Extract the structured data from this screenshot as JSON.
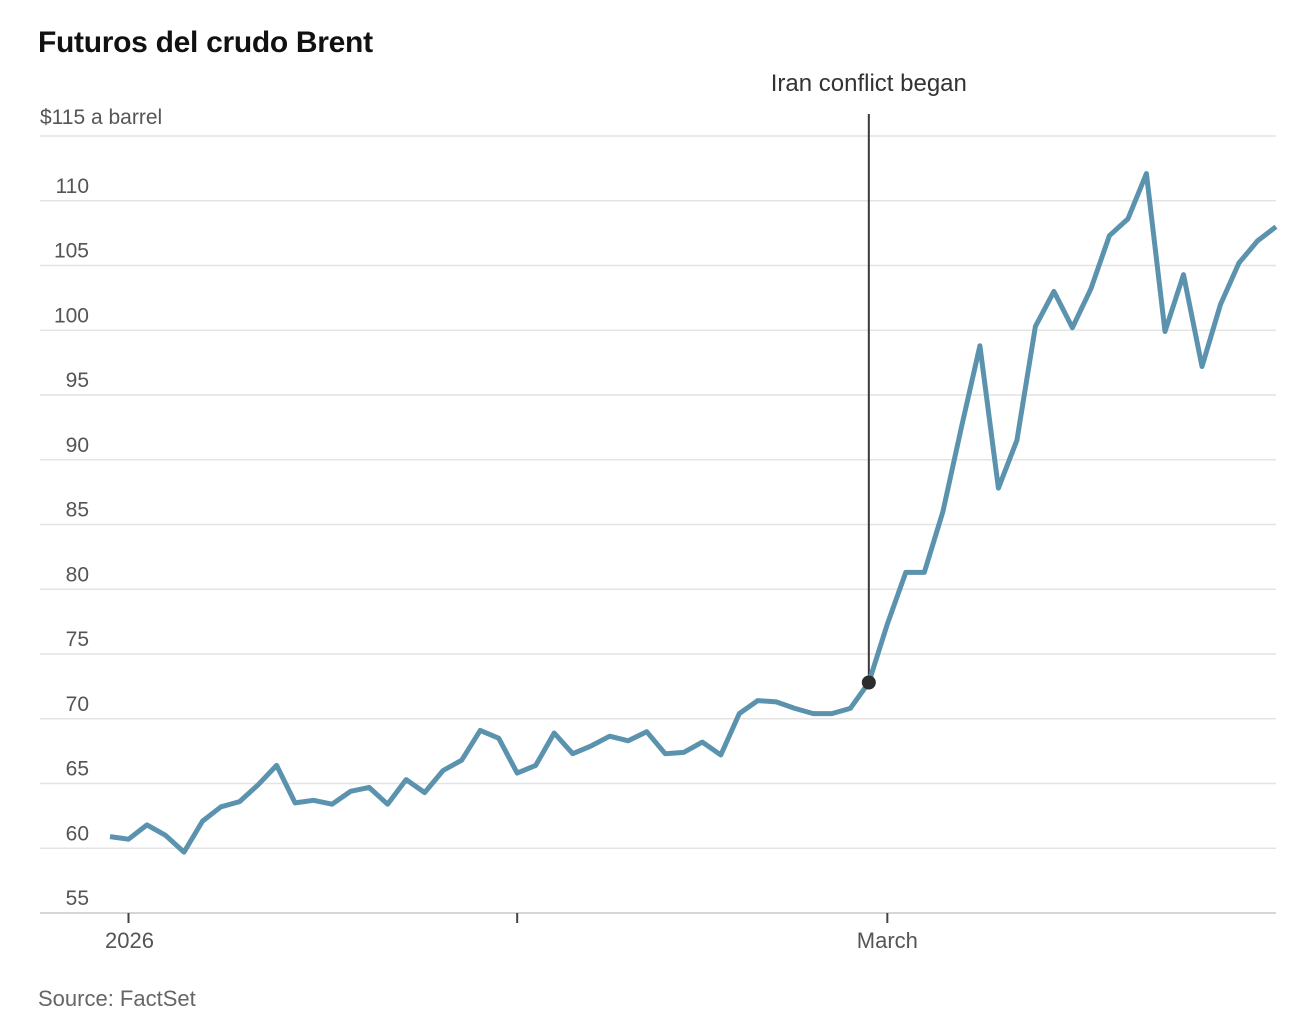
{
  "title": "Futuros del crudo Brent",
  "source": "Source: FactSet",
  "chart_data": {
    "type": "line",
    "unit_label": "$115 a barrel",
    "annotation": "Iran conflict began",
    "ylim": [
      55,
      115
    ],
    "y_step": 5,
    "grid": true,
    "y_ticks": [
      {
        "v": 115,
        "label": ""
      },
      {
        "v": 110,
        "label": "110"
      },
      {
        "v": 105,
        "label": "105"
      },
      {
        "v": 100,
        "label": "100"
      },
      {
        "v": 95,
        "label": "95"
      },
      {
        "v": 90,
        "label": "90"
      },
      {
        "v": 85,
        "label": "85"
      },
      {
        "v": 80,
        "label": "80"
      },
      {
        "v": 75,
        "label": "75"
      },
      {
        "v": 70,
        "label": "70"
      },
      {
        "v": 65,
        "label": "65"
      },
      {
        "v": 60,
        "label": "60"
      },
      {
        "v": 55,
        "label": "55"
      }
    ],
    "x_ticks": [
      {
        "index": 1,
        "label": "2026"
      },
      {
        "index": 22,
        "label": ""
      },
      {
        "index": 42,
        "label": "March"
      }
    ],
    "marker": {
      "index": 41,
      "label": "Iran conflict began"
    },
    "values": [
      60.9,
      60.7,
      61.8,
      61.0,
      59.7,
      62.1,
      63.2,
      63.6,
      64.9,
      66.4,
      63.5,
      63.7,
      63.4,
      64.4,
      64.7,
      63.4,
      65.3,
      64.3,
      66.0,
      66.8,
      69.1,
      68.5,
      65.8,
      66.4,
      68.9,
      67.3,
      67.9,
      68.65,
      68.3,
      69.0,
      67.3,
      67.4,
      68.2,
      67.2,
      70.4,
      71.4,
      71.3,
      70.8,
      70.4,
      70.4,
      70.8,
      72.8,
      77.3,
      81.3,
      81.3,
      86.0,
      92.5,
      98.8,
      87.8,
      91.5,
      100.3,
      103.0,
      100.2,
      103.2,
      107.3,
      108.6,
      112.1,
      99.9,
      104.3,
      97.2,
      102.0,
      105.2,
      106.9,
      108.0
    ],
    "colors": {
      "line": "#5b93ae",
      "marker": "#2d2d2d",
      "annotation_line": "#3a3a3a",
      "grid": "#e4e4e4",
      "axis": "#c9c9c9",
      "tick": "#444444",
      "axis_label": "#555555"
    }
  }
}
